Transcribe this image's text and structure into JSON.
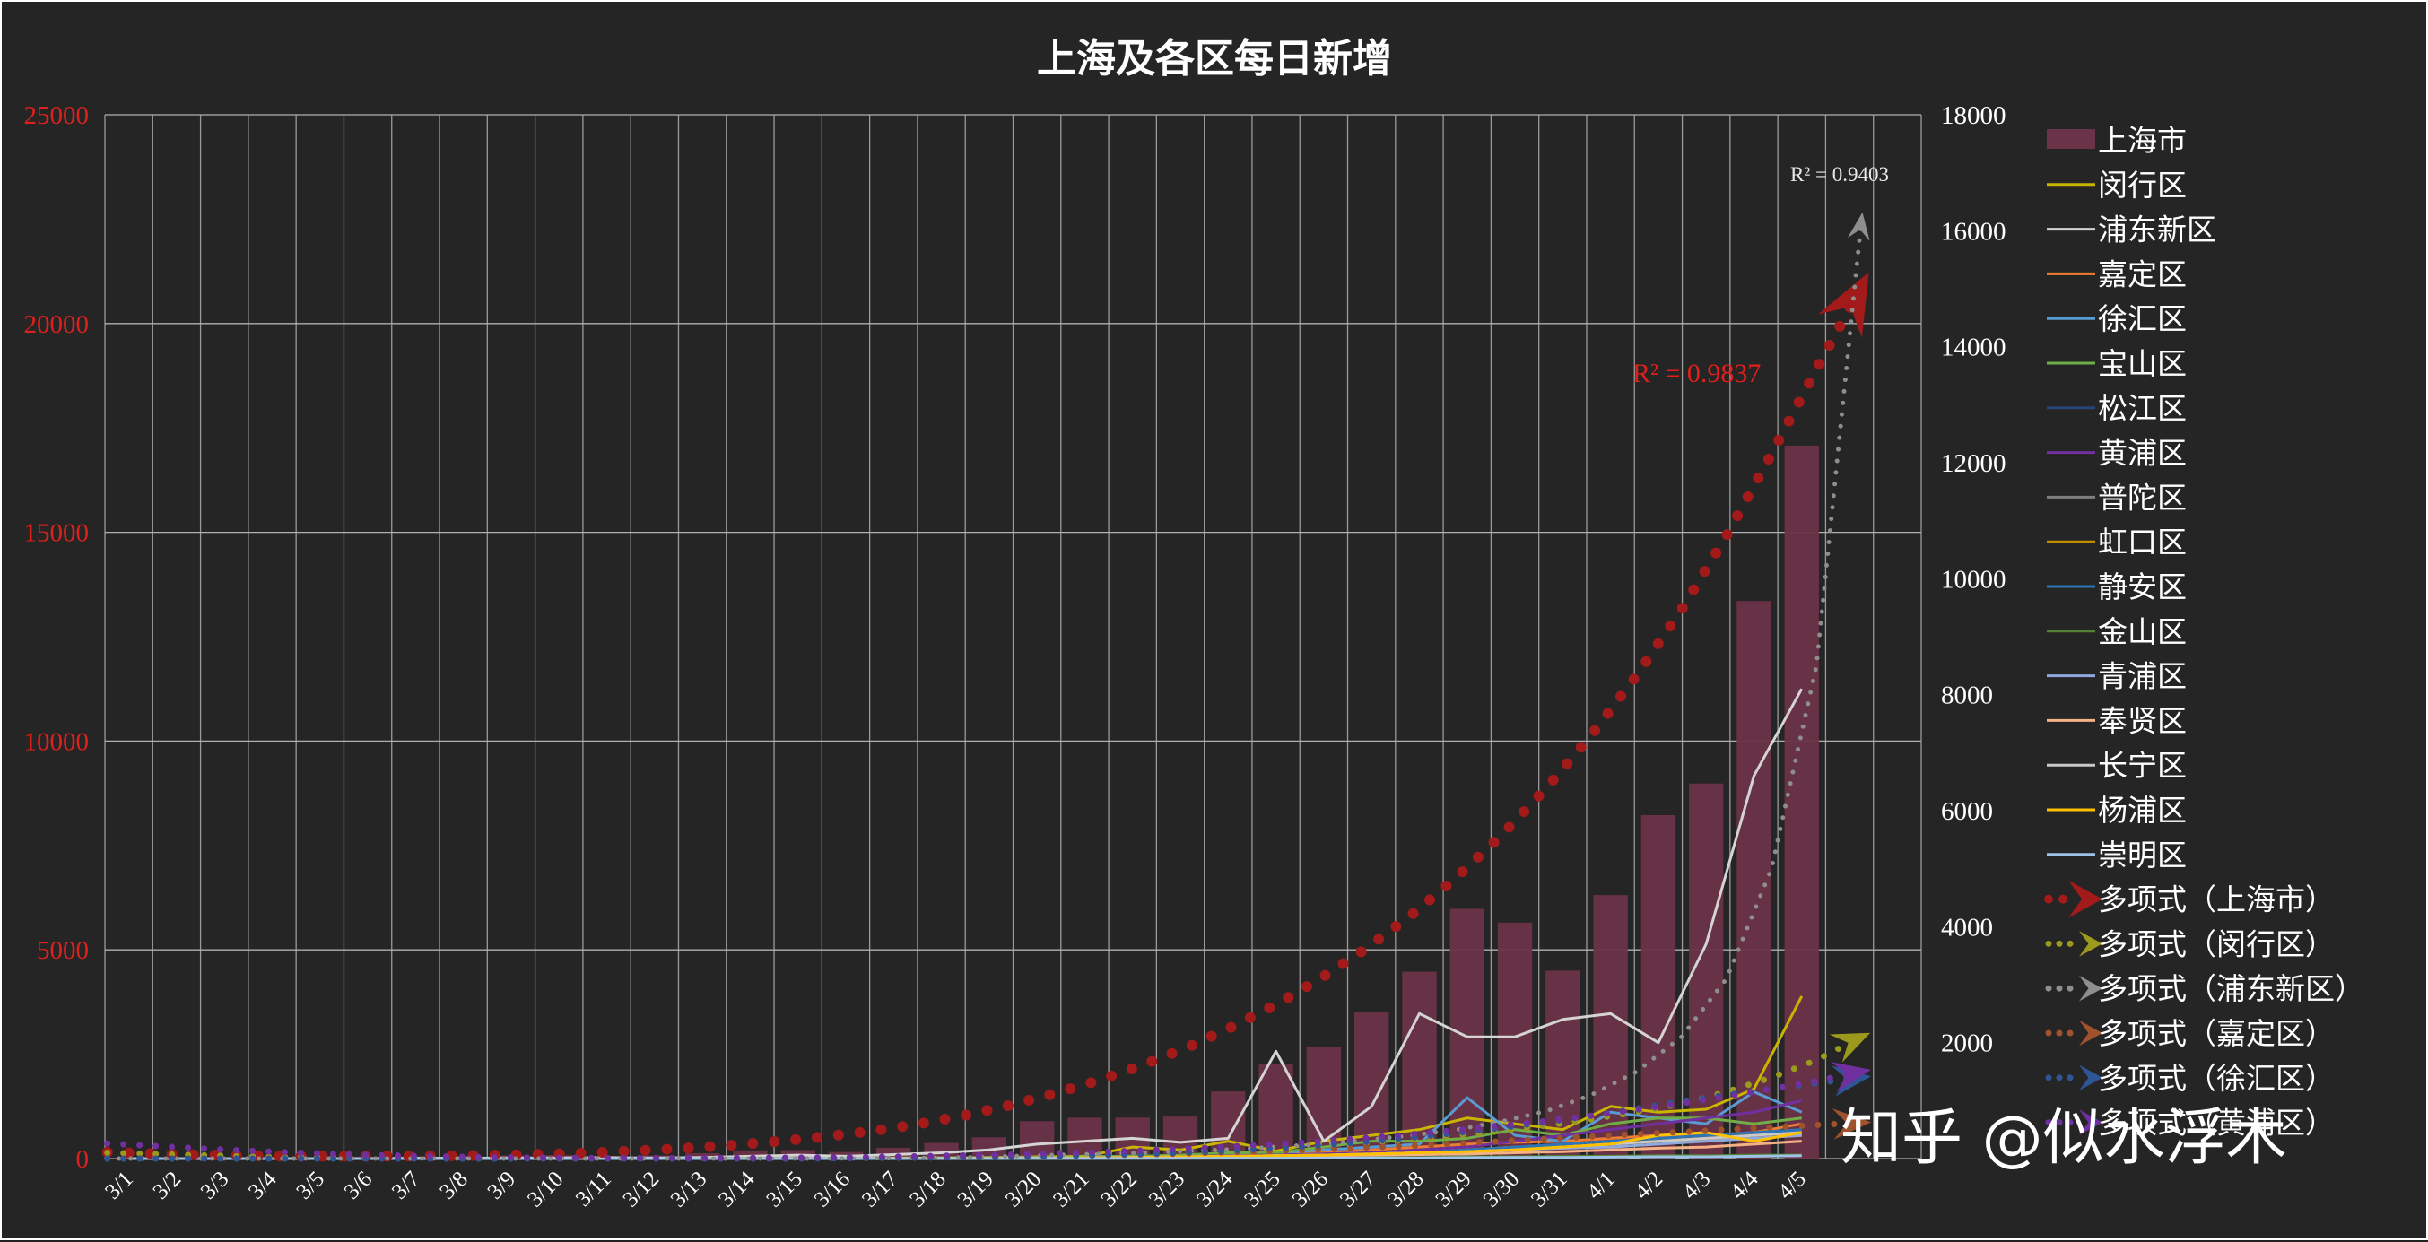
{
  "chart_data": {
    "type": "bar",
    "title": "上海及各区每日新增",
    "categories": [
      "3/1",
      "3/2",
      "3/3",
      "3/4",
      "3/5",
      "3/6",
      "3/7",
      "3/8",
      "3/9",
      "3/10",
      "3/11",
      "3/12",
      "3/13",
      "3/14",
      "3/15",
      "3/16",
      "3/17",
      "3/18",
      "3/19",
      "3/20",
      "3/21",
      "3/22",
      "3/23",
      "3/24",
      "3/25",
      "3/26",
      "3/27",
      "3/28",
      "3/29",
      "3/30",
      "3/31",
      "4/1",
      "4/2",
      "4/3",
      "4/4",
      "4/5"
    ],
    "ylim": [
      0,
      25000
    ],
    "yticks": [
      "0",
      "5000",
      "10000",
      "15000",
      "20000",
      "25000"
    ],
    "y2lim": [
      0,
      18000
    ],
    "y2ticks": [
      "2000",
      "4000",
      "6000",
      "8000",
      "10000",
      "12000",
      "14000",
      "16000",
      "18000"
    ],
    "grid": true,
    "legend_position": "right",
    "series": [
      {
        "name": "上海市",
        "kind": "bar",
        "axis": "left",
        "color": "#6b3348",
        "values": [
          2,
          0,
          5,
          16,
          28,
          45,
          51,
          62,
          76,
          83,
          64,
          76,
          130,
          197,
          202,
          158,
          260,
          374,
          509,
          896,
          981,
          983,
          1006,
          1609,
          2269,
          2678,
          3500,
          4477,
          5982,
          5653,
          4502,
          6311,
          8226,
          8983,
          13354,
          17077
        ]
      },
      {
        "name": "闵行区",
        "kind": "line",
        "axis": "right",
        "color": "#c9b400",
        "values": [
          0,
          0,
          0,
          0,
          0,
          0,
          2,
          3,
          2,
          5,
          3,
          2,
          4,
          6,
          8,
          5,
          10,
          12,
          20,
          30,
          40,
          200,
          150,
          300,
          130,
          300,
          400,
          500,
          700,
          600,
          500,
          900,
          800,
          850,
          1200,
          2800
        ]
      },
      {
        "name": "浦东新区",
        "kind": "line",
        "axis": "right",
        "color": "#d4d4d4",
        "values": [
          0,
          0,
          0,
          0,
          0,
          0,
          5,
          8,
          10,
          12,
          15,
          10,
          20,
          40,
          60,
          40,
          70,
          100,
          150,
          250,
          300,
          350,
          280,
          350,
          1850,
          300,
          900,
          2500,
          2100,
          2100,
          2400,
          2500,
          2000,
          3700,
          6600,
          8100
        ]
      },
      {
        "name": "嘉定区",
        "kind": "line",
        "axis": "right",
        "color": "#ed7d31",
        "values": [
          0,
          0,
          0,
          0,
          0,
          0,
          0,
          0,
          0,
          0,
          0,
          0,
          0,
          5,
          5,
          5,
          8,
          10,
          15,
          20,
          30,
          40,
          40,
          60,
          80,
          100,
          150,
          200,
          250,
          280,
          300,
          350,
          400,
          400,
          450,
          600
        ]
      },
      {
        "name": "徐汇区",
        "kind": "line",
        "axis": "right",
        "color": "#5b9bd5",
        "values": [
          0,
          0,
          0,
          0,
          0,
          0,
          0,
          0,
          0,
          0,
          0,
          0,
          0,
          5,
          5,
          5,
          5,
          10,
          15,
          20,
          30,
          40,
          50,
          80,
          100,
          150,
          200,
          250,
          1050,
          400,
          300,
          800,
          700,
          600,
          1150,
          800
        ]
      },
      {
        "name": "宝山区",
        "kind": "line",
        "axis": "right",
        "color": "#70ad47",
        "values": [
          0,
          0,
          0,
          0,
          0,
          0,
          0,
          0,
          0,
          0,
          0,
          0,
          0,
          5,
          5,
          5,
          5,
          10,
          15,
          20,
          30,
          40,
          60,
          100,
          100,
          200,
          300,
          300,
          350,
          500,
          400,
          600,
          700,
          700,
          600,
          700
        ]
      },
      {
        "name": "松江区",
        "kind": "line",
        "axis": "right",
        "color": "#264478",
        "values": [
          0,
          0,
          0,
          0,
          0,
          0,
          0,
          0,
          0,
          0,
          0,
          0,
          0,
          2,
          2,
          2,
          3,
          5,
          8,
          10,
          15,
          20,
          30,
          50,
          60,
          80,
          100,
          120,
          150,
          200,
          200,
          250,
          300,
          350,
          400,
          500
        ]
      },
      {
        "name": "黄浦区",
        "kind": "line",
        "axis": "right",
        "color": "#7030a0",
        "values": [
          0,
          0,
          0,
          0,
          0,
          0,
          0,
          0,
          0,
          0,
          0,
          0,
          0,
          2,
          2,
          2,
          3,
          5,
          8,
          10,
          15,
          20,
          30,
          50,
          60,
          80,
          100,
          150,
          200,
          300,
          400,
          500,
          600,
          700,
          800,
          1000
        ]
      },
      {
        "name": "普陀区",
        "kind": "line",
        "axis": "right",
        "color": "#7f7f7f",
        "values": [
          0,
          0,
          0,
          0,
          0,
          0,
          0,
          0,
          0,
          0,
          0,
          0,
          0,
          2,
          2,
          2,
          3,
          5,
          8,
          10,
          15,
          20,
          30,
          40,
          50,
          60,
          80,
          100,
          150,
          200,
          200,
          250,
          300,
          300,
          350,
          400
        ]
      },
      {
        "name": "虹口区",
        "kind": "line",
        "axis": "right",
        "color": "#bf8f00",
        "values": [
          0,
          0,
          0,
          0,
          0,
          0,
          0,
          0,
          0,
          0,
          0,
          0,
          0,
          2,
          2,
          2,
          3,
          5,
          8,
          10,
          15,
          20,
          30,
          40,
          50,
          60,
          80,
          100,
          150,
          200,
          200,
          250,
          300,
          350,
          350,
          400
        ]
      },
      {
        "name": "静安区",
        "kind": "line",
        "axis": "right",
        "color": "#2e75b6",
        "values": [
          0,
          0,
          0,
          0,
          0,
          0,
          0,
          0,
          0,
          0,
          0,
          0,
          0,
          2,
          2,
          2,
          3,
          5,
          8,
          10,
          15,
          20,
          30,
          40,
          50,
          60,
          80,
          100,
          150,
          200,
          250,
          300,
          350,
          400,
          450,
          500
        ]
      },
      {
        "name": "金山区",
        "kind": "line",
        "axis": "right",
        "color": "#548235",
        "values": [
          0,
          0,
          0,
          0,
          0,
          0,
          0,
          0,
          0,
          0,
          0,
          0,
          0,
          0,
          0,
          0,
          1,
          2,
          2,
          3,
          5,
          5,
          8,
          10,
          10,
          15,
          20,
          20,
          30,
          30,
          40,
          40,
          50,
          50,
          60,
          60
        ]
      },
      {
        "name": "青浦区",
        "kind": "line",
        "axis": "right",
        "color": "#8faadc",
        "values": [
          0,
          0,
          0,
          0,
          0,
          0,
          0,
          0,
          0,
          0,
          0,
          0,
          0,
          2,
          2,
          2,
          3,
          5,
          8,
          10,
          15,
          20,
          30,
          40,
          50,
          60,
          80,
          100,
          120,
          150,
          180,
          200,
          250,
          300,
          350,
          400
        ]
      },
      {
        "name": "奉贤区",
        "kind": "line",
        "axis": "right",
        "color": "#f4b183",
        "values": [
          0,
          0,
          0,
          0,
          0,
          0,
          0,
          0,
          0,
          0,
          0,
          0,
          0,
          0,
          1,
          1,
          2,
          3,
          5,
          8,
          10,
          15,
          20,
          30,
          40,
          50,
          60,
          70,
          80,
          100,
          120,
          150,
          180,
          200,
          250,
          300
        ]
      },
      {
        "name": "长宁区",
        "kind": "line",
        "axis": "right",
        "color": "#c9c9c9",
        "values": [
          0,
          0,
          0,
          0,
          0,
          0,
          0,
          0,
          0,
          0,
          0,
          0,
          0,
          2,
          2,
          2,
          3,
          5,
          8,
          10,
          15,
          20,
          30,
          40,
          50,
          60,
          80,
          100,
          120,
          150,
          200,
          250,
          300,
          350,
          400,
          450
        ]
      },
      {
        "name": "杨浦区",
        "kind": "line",
        "axis": "right",
        "color": "#ffc000",
        "values": [
          0,
          0,
          0,
          0,
          0,
          0,
          0,
          0,
          0,
          0,
          0,
          0,
          0,
          2,
          2,
          2,
          3,
          5,
          8,
          10,
          15,
          20,
          30,
          40,
          50,
          60,
          80,
          100,
          120,
          150,
          200,
          250,
          400,
          450,
          300,
          450
        ]
      },
      {
        "name": "崇明区",
        "kind": "line",
        "axis": "right",
        "color": "#9dc3e6",
        "values": [
          0,
          0,
          0,
          0,
          0,
          0,
          0,
          0,
          0,
          0,
          0,
          0,
          0,
          0,
          0,
          0,
          0,
          1,
          1,
          2,
          2,
          3,
          3,
          5,
          5,
          8,
          10,
          10,
          15,
          20,
          20,
          25,
          30,
          30,
          40,
          50
        ]
      }
    ],
    "trendlines": [
      {
        "name": "多项式（上海市）",
        "axis": "left",
        "color": "#a31a1a",
        "style": "dots-big",
        "r2": "R² = 0.9837",
        "values": [
          150,
          120,
          90,
          70,
          60,
          55,
          55,
          60,
          70,
          90,
          110,
          150,
          200,
          260,
          330,
          420,
          530,
          660,
          820,
          1020,
          1260,
          1540,
          1860,
          2230,
          2660,
          3150,
          3700,
          4330,
          5040,
          5840,
          6740,
          7750,
          8880,
          10150,
          11570,
          13150,
          14920,
          16880,
          18900,
          20900
        ]
      },
      {
        "name": "多项式（闵行区）",
        "axis": "right",
        "color": "#9c9a1c",
        "style": "dots",
        "r2": "",
        "values": [
          100,
          80,
          60,
          40,
          30,
          20,
          15,
          10,
          8,
          6,
          5,
          5,
          5,
          6,
          8,
          10,
          12,
          15,
          20,
          30,
          40,
          55,
          70,
          90,
          110,
          140,
          180,
          220,
          270,
          330,
          400,
          480,
          570,
          680,
          800,
          950,
          1150,
          1400,
          1700,
          2100
        ]
      },
      {
        "name": "多项式（浦东新区）",
        "axis": "right",
        "color": "#8e8e8e",
        "style": "dots-small",
        "r2": "R² = 0.9403",
        "values": [
          0,
          0,
          0,
          0,
          0,
          0,
          0,
          0,
          0,
          0,
          0,
          0,
          0,
          0,
          0,
          0,
          0,
          5,
          10,
          20,
          40,
          60,
          80,
          100,
          130,
          160,
          200,
          250,
          320,
          400,
          500,
          640,
          820,
          1100,
          1500,
          2100,
          3100,
          5000,
          8500,
          16200
        ]
      },
      {
        "name": "多项式（嘉定区）",
        "axis": "right",
        "color": "#a0522d",
        "style": "dots",
        "r2": "",
        "values": [
          0,
          0,
          0,
          0,
          0,
          0,
          0,
          0,
          0,
          0,
          0,
          0,
          0,
          0,
          0,
          0,
          5,
          10,
          15,
          20,
          30,
          40,
          55,
          70,
          90,
          110,
          130,
          160,
          190,
          220,
          260,
          300,
          340,
          380,
          420,
          460,
          500,
          540,
          580,
          620
        ]
      },
      {
        "name": "多项式（徐汇区）",
        "axis": "right",
        "color": "#2f5597",
        "style": "dots",
        "r2": "",
        "values": [
          0,
          0,
          0,
          0,
          0,
          0,
          0,
          0,
          0,
          0,
          0,
          0,
          0,
          0,
          0,
          0,
          5,
          10,
          15,
          20,
          30,
          40,
          60,
          80,
          110,
          140,
          180,
          230,
          290,
          360,
          440,
          530,
          630,
          740,
          860,
          990,
          1100,
          1200,
          1300,
          1400
        ]
      },
      {
        "name": "多项式（黄浦区）",
        "axis": "right",
        "color": "#7030a0",
        "style": "dots",
        "r2": "",
        "values": [
          260,
          220,
          180,
          140,
          110,
          80,
          60,
          45,
          30,
          20,
          15,
          10,
          10,
          10,
          12,
          15,
          20,
          30,
          40,
          55,
          70,
          90,
          110,
          140,
          170,
          210,
          250,
          300,
          360,
          420,
          490,
          570,
          650,
          740,
          840,
          950,
          1070,
          1200,
          1340,
          1500
        ]
      }
    ]
  },
  "legend": {
    "items": [
      "上海市",
      "闵行区",
      "浦东新区",
      "嘉定区",
      "徐汇区",
      "宝山区",
      "松江区",
      "黄浦区",
      "普陀区",
      "虹口区",
      "静安区",
      "金山区",
      "青浦区",
      "奉贤区",
      "长宁区",
      "杨浦区",
      "崇明区",
      "多项式（上海市）",
      "多项式（闵行区）",
      "多项式（浦东新区）",
      "多项式（嘉定区）",
      "多项式（徐汇区）",
      "多项式（黄浦区）"
    ]
  },
  "watermark": "知乎 @似水浮木"
}
